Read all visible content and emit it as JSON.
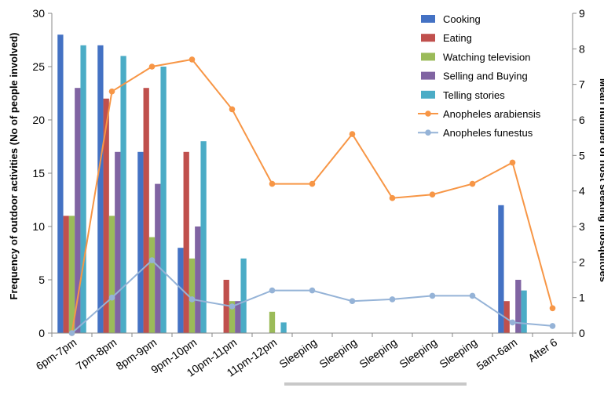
{
  "chart_data": {
    "type": "bar",
    "categories": [
      "6pm-7pm",
      "7pm-8pm",
      "8pm-9pm",
      "9pm-10pm",
      "10pm-11pm",
      "11pm-12pm",
      "Sleeping",
      "Sleeping",
      "Sleeping",
      "Sleeping",
      "Sleeping",
      "5am-6am",
      "After 6"
    ],
    "ylabel": "Frequency of outdoor activities (No of people involved)",
    "ylim": [
      0,
      30
    ],
    "yticks": [
      0,
      5,
      10,
      15,
      20,
      25,
      30
    ],
    "y2label": "Mean number of host seeking mosquitoes",
    "y2lim": [
      0,
      9
    ],
    "y2ticks": [
      0,
      1,
      2,
      3,
      4,
      5,
      6,
      7,
      8,
      9
    ],
    "series": [
      {
        "name": "Cooking",
        "kind": "bar",
        "color": "#4472c4",
        "values": [
          28,
          27,
          17,
          8,
          null,
          null,
          null,
          null,
          null,
          null,
          null,
          12,
          null
        ]
      },
      {
        "name": "Eating",
        "kind": "bar",
        "color": "#c0504d",
        "values": [
          11,
          22,
          23,
          17,
          5,
          null,
          null,
          null,
          null,
          null,
          null,
          3,
          null
        ]
      },
      {
        "name": "Watching television",
        "kind": "bar",
        "color": "#9bbb59",
        "values": [
          11,
          11,
          9,
          7,
          3,
          2,
          null,
          null,
          null,
          null,
          null,
          null,
          null
        ]
      },
      {
        "name": "Selling and Buying",
        "kind": "bar",
        "color": "#8064a2",
        "values": [
          23,
          17,
          14,
          10,
          3,
          null,
          null,
          null,
          null,
          null,
          null,
          5,
          null
        ]
      },
      {
        "name": "Telling stories",
        "kind": "bar",
        "color": "#4bacc6",
        "values": [
          27,
          26,
          25,
          18,
          7,
          1,
          null,
          null,
          null,
          null,
          null,
          4,
          null
        ]
      },
      {
        "name": "Anopheles arabiensis",
        "kind": "line",
        "axis": "secondary",
        "color": "#f79646",
        "values": [
          0,
          6.8,
          7.5,
          7.7,
          6.3,
          4.2,
          4.2,
          5.6,
          3.8,
          3.9,
          4.2,
          4.8,
          0.7
        ]
      },
      {
        "name": "Anopheles funestus",
        "kind": "line",
        "axis": "secondary",
        "color": "#95b3d7",
        "values": [
          0,
          1.0,
          2.05,
          0.95,
          0.75,
          1.2,
          1.2,
          0.9,
          0.95,
          1.05,
          1.05,
          0.3,
          0.2
        ]
      }
    ],
    "legend_position": "top-right",
    "grid": false
  }
}
